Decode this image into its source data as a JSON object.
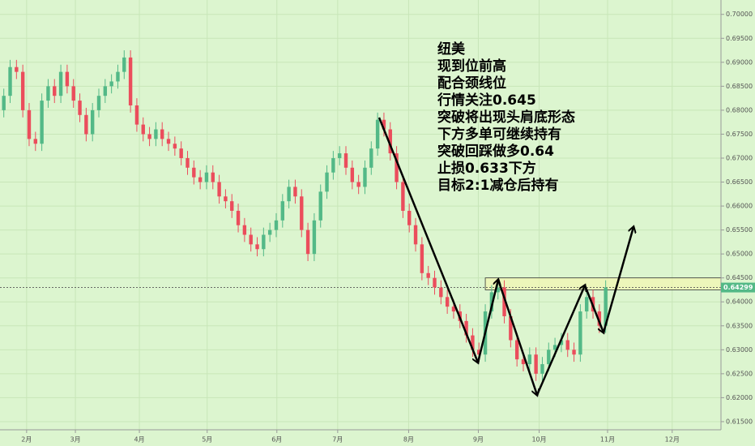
{
  "chart_data": {
    "type": "candlestick",
    "annotation": [
      "纽美",
      "现到位前高",
      "配合颈线位",
      "行情关注0.645",
      "突破将出现头肩底形态",
      "下方多单可继续持有",
      "突破回踩做多0.64",
      "止损0.633下方",
      "目标2:1减仓后持有"
    ],
    "open": [
      0.68,
      0.683,
      0.689,
      0.688,
      0.68,
      0.674,
      0.673,
      0.682,
      0.685,
      0.683,
      0.688,
      0.685,
      0.682,
      0.679,
      0.675,
      0.68,
      0.683,
      0.685,
      0.686,
      0.688,
      0.691,
      0.681,
      0.677,
      0.675,
      0.674,
      0.676,
      0.674,
      0.673,
      0.672,
      0.67,
      0.668,
      0.666,
      0.665,
      0.667,
      0.665,
      0.662,
      0.661,
      0.659,
      0.656,
      0.654,
      0.652,
      0.651,
      0.654,
      0.655,
      0.657,
      0.661,
      0.664,
      0.662,
      0.655,
      0.65,
      0.657,
      0.663,
      0.667,
      0.67,
      0.671,
      0.668,
      0.665,
      0.664,
      0.668,
      0.672,
      0.678,
      0.676,
      0.671,
      0.665,
      0.659,
      0.656,
      0.652,
      0.646,
      0.645,
      0.643,
      0.641,
      0.639,
      0.638,
      0.636,
      0.633,
      0.63,
      0.629,
      0.638,
      0.642,
      0.643,
      0.637,
      0.632,
      0.628,
      0.627,
      0.629,
      0.625,
      0.627,
      0.63,
      0.631,
      0.632,
      0.63,
      0.629,
      0.638,
      0.641,
      0.638,
      0.635
    ],
    "high": [
      0.6845,
      0.6905,
      0.6905,
      0.6895,
      0.6815,
      0.6755,
      0.6835,
      0.6865,
      0.6865,
      0.6895,
      0.6895,
      0.6865,
      0.6835,
      0.6805,
      0.6815,
      0.6845,
      0.6865,
      0.6875,
      0.6895,
      0.6925,
      0.6925,
      0.6825,
      0.6785,
      0.6765,
      0.6775,
      0.6775,
      0.6755,
      0.6745,
      0.6735,
      0.6715,
      0.6695,
      0.6675,
      0.6685,
      0.6685,
      0.6665,
      0.6635,
      0.6625,
      0.6605,
      0.6575,
      0.6555,
      0.6535,
      0.6555,
      0.6565,
      0.6585,
      0.6625,
      0.6655,
      0.6655,
      0.6635,
      0.6565,
      0.6585,
      0.6645,
      0.6685,
      0.6715,
      0.6725,
      0.6725,
      0.6695,
      0.6665,
      0.6695,
      0.6735,
      0.6795,
      0.6795,
      0.6775,
      0.6725,
      0.6665,
      0.6605,
      0.6575,
      0.6535,
      0.6475,
      0.6465,
      0.6445,
      0.6425,
      0.6405,
      0.6395,
      0.6375,
      0.6345,
      0.6315,
      0.6395,
      0.6435,
      0.6445,
      0.6445,
      0.6385,
      0.6335,
      0.6295,
      0.6305,
      0.6305,
      0.6285,
      0.6315,
      0.6325,
      0.6335,
      0.6335,
      0.6315,
      0.6395,
      0.6425,
      0.6425,
      0.6395,
      0.6445
    ],
    "low": [
      0.6785,
      0.6815,
      0.6865,
      0.6785,
      0.6725,
      0.6715,
      0.6715,
      0.6805,
      0.6815,
      0.6815,
      0.6835,
      0.6805,
      0.6775,
      0.6735,
      0.6735,
      0.6785,
      0.6815,
      0.6835,
      0.6845,
      0.6865,
      0.6795,
      0.6755,
      0.6735,
      0.6725,
      0.6725,
      0.6725,
      0.6715,
      0.6705,
      0.6685,
      0.6665,
      0.6645,
      0.6635,
      0.6635,
      0.6635,
      0.6605,
      0.6595,
      0.6575,
      0.6545,
      0.6525,
      0.6505,
      0.6495,
      0.6495,
      0.6525,
      0.6535,
      0.6555,
      0.6595,
      0.6605,
      0.6535,
      0.6485,
      0.6485,
      0.6555,
      0.6615,
      0.6655,
      0.6685,
      0.6665,
      0.6635,
      0.6625,
      0.6625,
      0.6665,
      0.6705,
      0.6745,
      0.6695,
      0.6635,
      0.6575,
      0.6545,
      0.6505,
      0.6445,
      0.6435,
      0.6415,
      0.6395,
      0.6375,
      0.6365,
      0.6345,
      0.6315,
      0.6285,
      0.6275,
      0.6275,
      0.6365,
      0.6405,
      0.6355,
      0.6305,
      0.6265,
      0.6255,
      0.6255,
      0.6235,
      0.6235,
      0.6255,
      0.6285,
      0.6295,
      0.6285,
      0.6275,
      0.6275,
      0.6365,
      0.6365,
      0.6335,
      0.6335
    ],
    "close": [
      0.683,
      0.689,
      0.688,
      0.68,
      0.674,
      0.673,
      0.682,
      0.685,
      0.683,
      0.688,
      0.685,
      0.682,
      0.679,
      0.675,
      0.68,
      0.683,
      0.685,
      0.686,
      0.688,
      0.691,
      0.681,
      0.677,
      0.675,
      0.674,
      0.676,
      0.674,
      0.673,
      0.672,
      0.67,
      0.668,
      0.666,
      0.665,
      0.667,
      0.665,
      0.662,
      0.661,
      0.659,
      0.656,
      0.654,
      0.652,
      0.651,
      0.654,
      0.655,
      0.657,
      0.661,
      0.664,
      0.662,
      0.655,
      0.65,
      0.657,
      0.663,
      0.667,
      0.67,
      0.671,
      0.668,
      0.665,
      0.664,
      0.668,
      0.672,
      0.678,
      0.676,
      0.671,
      0.665,
      0.659,
      0.656,
      0.652,
      0.646,
      0.645,
      0.643,
      0.641,
      0.639,
      0.638,
      0.636,
      0.633,
      0.63,
      0.629,
      0.638,
      0.642,
      0.643,
      0.637,
      0.632,
      0.628,
      0.627,
      0.629,
      0.625,
      0.627,
      0.63,
      0.631,
      0.632,
      0.63,
      0.629,
      0.638,
      0.641,
      0.638,
      0.635,
      0.64299
    ],
    "up_color": "#53b987",
    "down_color": "#eb4d5c",
    "last_price": 0.64299,
    "zone": [
      0.6425,
      0.645
    ],
    "xlim": [
      -0.6,
      113.2
    ],
    "xticks": [
      {
        "value": 3.6,
        "label": "2月"
      },
      {
        "value": 11.3,
        "label": "3月"
      },
      {
        "value": 21.4,
        "label": "4月"
      },
      {
        "value": 32.1,
        "label": "5月"
      },
      {
        "value": 43.1,
        "label": "6月"
      },
      {
        "value": 52.7,
        "label": "7月"
      },
      {
        "value": 63.9,
        "label": "8月"
      },
      {
        "value": 74.9,
        "label": "9月"
      },
      {
        "value": 84.5,
        "label": "10月"
      },
      {
        "value": 95.3,
        "label": "11月"
      },
      {
        "value": 105.5,
        "label": "12月"
      }
    ],
    "ylim": [
      0.6133,
      0.703
    ],
    "yticks": [
      {
        "value": 0.615,
        "label": "0.61500"
      },
      {
        "value": 0.62,
        "label": "0.62000"
      },
      {
        "value": 0.625,
        "label": "0.62500"
      },
      {
        "value": 0.63,
        "label": "0.63000"
      },
      {
        "value": 0.635,
        "label": "0.63500"
      },
      {
        "value": 0.64,
        "label": "0.64000"
      },
      {
        "value": 0.645,
        "label": "0.64500"
      },
      {
        "value": 0.65,
        "label": "0.65000"
      },
      {
        "value": 0.655,
        "label": "0.65500"
      },
      {
        "value": 0.66,
        "label": "0.66000"
      },
      {
        "value": 0.665,
        "label": "0.66500"
      },
      {
        "value": 0.67,
        "label": "0.67000"
      },
      {
        "value": 0.675,
        "label": "0.67500"
      },
      {
        "value": 0.68,
        "label": "0.68000"
      },
      {
        "value": 0.685,
        "label": "0.68500"
      },
      {
        "value": 0.69,
        "label": "0.69000"
      },
      {
        "value": 0.695,
        "label": "0.69500"
      },
      {
        "value": 0.7,
        "label": "0.70000"
      }
    ],
    "grid": true
  }
}
